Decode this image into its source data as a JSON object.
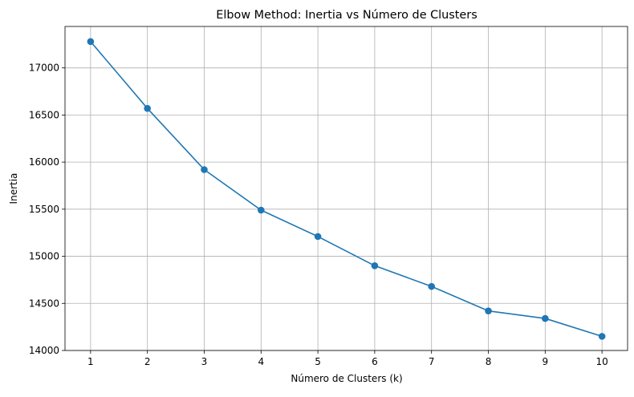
{
  "chart_data": {
    "type": "line",
    "title": "Elbow Method: Inertia vs Número de Clusters",
    "xlabel": "Número de Clusters (k)",
    "ylabel": "Inertia",
    "x": [
      1,
      2,
      3,
      4,
      5,
      6,
      7,
      8,
      9,
      10
    ],
    "series": [
      {
        "values": [
          17280,
          16570,
          15920,
          15490,
          15210,
          14900,
          14680,
          14420,
          14340,
          14150
        ],
        "color": "#1f77b4",
        "marker": "circle"
      }
    ],
    "xticks": [
      "1",
      "2",
      "3",
      "4",
      "5",
      "6",
      "7",
      "8",
      "9",
      "10"
    ],
    "yticks": [
      14000,
      14500,
      15000,
      15500,
      16000,
      16500,
      17000
    ],
    "xlim": [
      0.55,
      10.45
    ],
    "ylim": [
      14000,
      17440
    ],
    "grid": true,
    "legend": "none"
  }
}
